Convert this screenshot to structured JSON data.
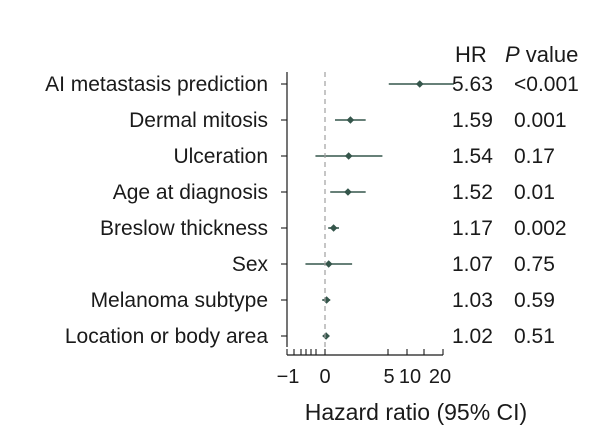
{
  "chart_data": {
    "type": "forest",
    "xlabel": "Hazard ratio (95% CI)",
    "xtick_labels": [
      "−1",
      "0",
      "5",
      "10",
      "20"
    ],
    "column_headers": {
      "hr": "HR",
      "p_italic": "P",
      "p_rest": " value"
    },
    "reference_line": 1,
    "rows": [
      {
        "label": "AI metastasis prediction",
        "hr": 5.63,
        "ci_low": 3.2,
        "ci_high": 10.5,
        "hr_text": "5.63",
        "p": "<0.001"
      },
      {
        "label": "Dermal mitosis",
        "hr": 1.59,
        "ci_low": 1.2,
        "ci_high": 2.1,
        "hr_text": "1.59",
        "p": "0.001"
      },
      {
        "label": "Ulceration",
        "hr": 1.54,
        "ci_low": 0.84,
        "ci_high": 2.85,
        "hr_text": "1.54",
        "p": "0.17"
      },
      {
        "label": "Age at diagnosis",
        "hr": 1.52,
        "ci_low": 1.1,
        "ci_high": 2.1,
        "hr_text": "1.52",
        "p": "0.01"
      },
      {
        "label": "Breslow thickness",
        "hr": 1.17,
        "ci_low": 1.06,
        "ci_high": 1.29,
        "hr_text": "1.17",
        "p": "0.002"
      },
      {
        "label": "Sex",
        "hr": 1.07,
        "ci_low": 0.7,
        "ci_high": 1.64,
        "hr_text": "1.07",
        "p": "0.75"
      },
      {
        "label": "Melanoma subtype",
        "hr": 1.03,
        "ci_low": 0.95,
        "ci_high": 1.1,
        "hr_text": "1.03",
        "p": "0.59"
      },
      {
        "label": "Location or body area",
        "hr": 1.02,
        "ci_low": 0.96,
        "ci_high": 1.08,
        "hr_text": "1.02",
        "p": "0.51"
      }
    ],
    "colors": {
      "marker": "#35564b",
      "reference": "#a0a0a0",
      "axis": "#1a1a1a"
    }
  }
}
